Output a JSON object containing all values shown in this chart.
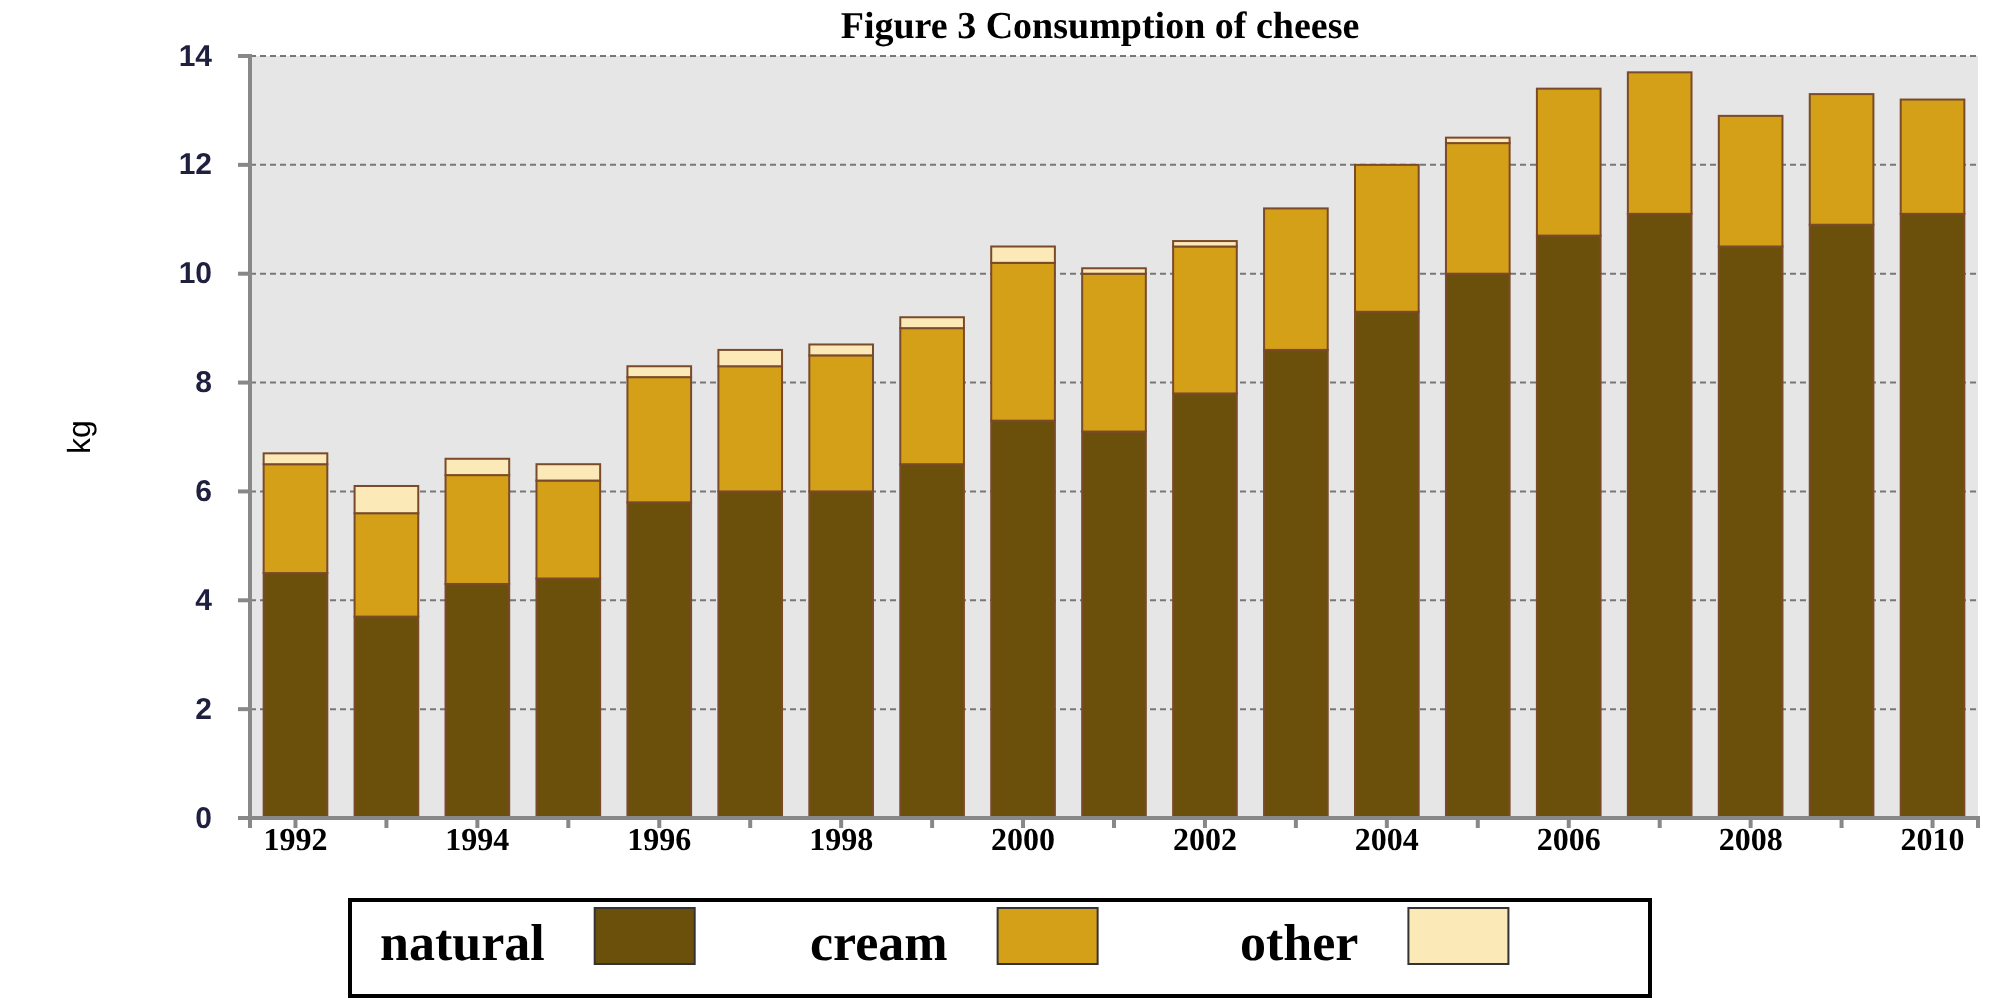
{
  "chart_data": {
    "type": "bar",
    "title": "Figure 3 Consumption of cheese",
    "ylabel": "kg",
    "categories": [
      "1992",
      null,
      "1994",
      null,
      "1996",
      null,
      "1998",
      null,
      "2000",
      null,
      "2002",
      null,
      "2004",
      null,
      "2006",
      null,
      "2008",
      null,
      "2010"
    ],
    "stacked": true,
    "series": [
      {
        "name": "natural",
        "color": "#6b500c",
        "values": [
          4.5,
          3.7,
          4.3,
          4.4,
          5.8,
          6.0,
          6.0,
          6.5,
          7.3,
          7.1,
          7.8,
          8.6,
          9.3,
          10.0,
          10.7,
          11.1,
          10.5,
          10.9,
          11.1
        ]
      },
      {
        "name": "cream",
        "color": "#d4a017",
        "values": [
          2.0,
          1.9,
          2.0,
          1.8,
          2.3,
          2.3,
          2.5,
          2.5,
          2.9,
          2.9,
          2.7,
          2.6,
          2.7,
          2.4,
          2.7,
          2.6,
          2.4,
          2.4,
          2.1
        ]
      },
      {
        "name": "other",
        "color": "#fbe9b7",
        "values": [
          0.2,
          0.5,
          0.3,
          0.3,
          0.2,
          0.3,
          0.2,
          0.2,
          0.3,
          0.1,
          0.1,
          0,
          0,
          0.1,
          0,
          0,
          0,
          0,
          0
        ]
      }
    ],
    "ylim": [
      0,
      14
    ],
    "yticks": [
      0,
      2,
      4,
      6,
      8,
      10,
      12,
      14
    ],
    "grid": "y",
    "legend": "bottom"
  }
}
